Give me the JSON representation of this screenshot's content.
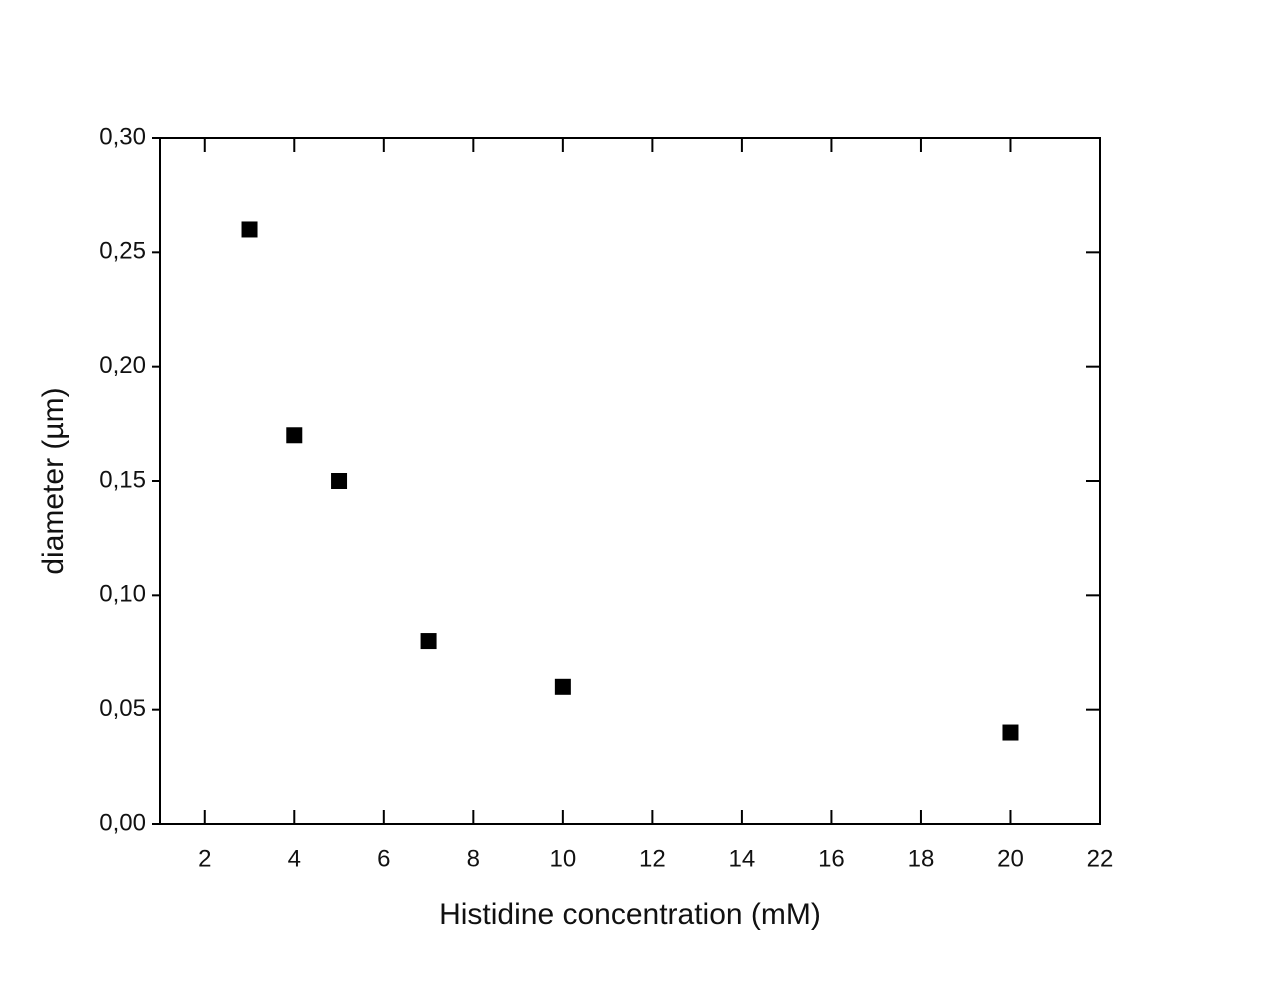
{
  "chart_data": {
    "type": "scatter",
    "x_label": "Histidine concentration (mM)",
    "y_label": "diameter (µm)",
    "x": [
      3,
      4,
      5,
      7,
      10,
      20
    ],
    "values": [
      0.26,
      0.17,
      0.15,
      0.08,
      0.06,
      0.04
    ],
    "color": "#000000",
    "marker": "square",
    "xlim": [
      1,
      22
    ],
    "xticks": [
      2,
      4,
      6,
      8,
      10,
      12,
      14,
      16,
      18,
      20,
      22
    ],
    "ylim": [
      0,
      0.3
    ],
    "yticks": [
      {
        "value": 0,
        "label": "0,00"
      },
      {
        "value": 0.05,
        "label": "0,05"
      },
      {
        "value": 0.1,
        "label": "0,10"
      },
      {
        "value": 0.15,
        "label": "0,15"
      },
      {
        "value": 0.2,
        "label": "0,20"
      },
      {
        "value": 0.25,
        "label": "0,25"
      },
      {
        "value": 0.3,
        "label": "0,30"
      }
    ],
    "mirror_ticks": true
  }
}
